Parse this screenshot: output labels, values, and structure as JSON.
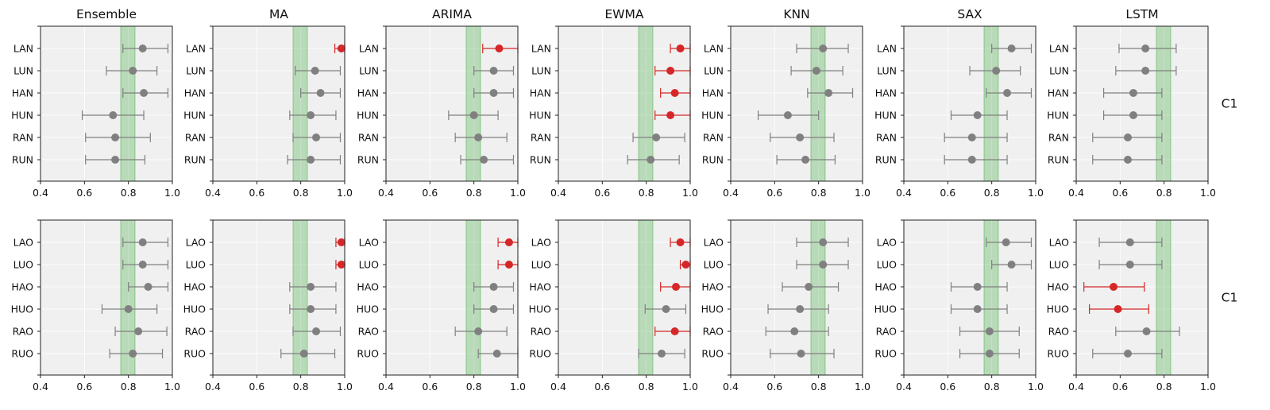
{
  "colors": {
    "normal": "#808080",
    "highlight": "#d62728",
    "band": "#2ca02c",
    "panel_bg": "#f0f0f0"
  },
  "chart_data": {
    "type": "scatter",
    "subtype": "dot-with-error-bars",
    "xlim": [
      0.4,
      1.0
    ],
    "xticks": [
      "0.4",
      "0.6",
      "0.8",
      "1.0"
    ],
    "reference_band": [
      0.765,
      0.83
    ],
    "grid": true,
    "columns": [
      "Ensemble",
      "MA",
      "ARIMA",
      "EWMA",
      "KNN",
      "SAX",
      "LSTM"
    ],
    "rows": [
      {
        "label": "C1",
        "categories": [
          "LAN",
          "LUN",
          "HAN",
          "HUN",
          "RAN",
          "RUN"
        ],
        "panels": [
          {
            "points": [
              {
                "v": 0.865,
                "lo": 0.775,
                "hi": 0.98,
                "hl": false
              },
              {
                "v": 0.82,
                "lo": 0.7,
                "hi": 0.93,
                "hl": false
              },
              {
                "v": 0.87,
                "lo": 0.775,
                "hi": 0.98,
                "hl": false
              },
              {
                "v": 0.73,
                "lo": 0.59,
                "hi": 0.87,
                "hl": false
              },
              {
                "v": 0.74,
                "lo": 0.605,
                "hi": 0.9,
                "hl": false
              },
              {
                "v": 0.74,
                "lo": 0.605,
                "hi": 0.875,
                "hl": false
              }
            ]
          },
          {
            "points": [
              {
                "v": 0.985,
                "lo": 0.955,
                "hi": 1.0,
                "hl": true
              },
              {
                "v": 0.865,
                "lo": 0.775,
                "hi": 0.98,
                "hl": false
              },
              {
                "v": 0.89,
                "lo": 0.8,
                "hi": 0.98,
                "hl": false
              },
              {
                "v": 0.845,
                "lo": 0.75,
                "hi": 0.96,
                "hl": false
              },
              {
                "v": 0.87,
                "lo": 0.765,
                "hi": 0.98,
                "hl": false
              },
              {
                "v": 0.845,
                "lo": 0.74,
                "hi": 0.98,
                "hl": false
              }
            ]
          },
          {
            "points": [
              {
                "v": 0.915,
                "lo": 0.84,
                "hi": 1.0,
                "hl": true
              },
              {
                "v": 0.89,
                "lo": 0.8,
                "hi": 0.98,
                "hl": false
              },
              {
                "v": 0.89,
                "lo": 0.8,
                "hi": 0.98,
                "hl": false
              },
              {
                "v": 0.8,
                "lo": 0.685,
                "hi": 0.91,
                "hl": false
              },
              {
                "v": 0.82,
                "lo": 0.715,
                "hi": 0.95,
                "hl": false
              },
              {
                "v": 0.845,
                "lo": 0.74,
                "hi": 0.98,
                "hl": false
              }
            ]
          },
          {
            "points": [
              {
                "v": 0.955,
                "lo": 0.91,
                "hi": 1.0,
                "hl": true
              },
              {
                "v": 0.91,
                "lo": 0.84,
                "hi": 1.0,
                "hl": true
              },
              {
                "v": 0.93,
                "lo": 0.865,
                "hi": 1.0,
                "hl": true
              },
              {
                "v": 0.91,
                "lo": 0.84,
                "hi": 1.0,
                "hl": true
              },
              {
                "v": 0.845,
                "lo": 0.74,
                "hi": 0.975,
                "hl": false
              },
              {
                "v": 0.82,
                "lo": 0.715,
                "hi": 0.95,
                "hl": false
              }
            ]
          },
          {
            "points": [
              {
                "v": 0.82,
                "lo": 0.7,
                "hi": 0.935,
                "hl": false
              },
              {
                "v": 0.79,
                "lo": 0.675,
                "hi": 0.91,
                "hl": false
              },
              {
                "v": 0.845,
                "lo": 0.75,
                "hi": 0.955,
                "hl": false
              },
              {
                "v": 0.66,
                "lo": 0.525,
                "hi": 0.8,
                "hl": false
              },
              {
                "v": 0.715,
                "lo": 0.58,
                "hi": 0.87,
                "hl": false
              },
              {
                "v": 0.74,
                "lo": 0.61,
                "hi": 0.875,
                "hl": false
              }
            ]
          },
          {
            "points": [
              {
                "v": 0.89,
                "lo": 0.8,
                "hi": 0.98,
                "hl": false
              },
              {
                "v": 0.82,
                "lo": 0.7,
                "hi": 0.93,
                "hl": false
              },
              {
                "v": 0.87,
                "lo": 0.775,
                "hi": 0.98,
                "hl": false
              },
              {
                "v": 0.735,
                "lo": 0.615,
                "hi": 0.87,
                "hl": false
              },
              {
                "v": 0.71,
                "lo": 0.585,
                "hi": 0.87,
                "hl": false
              },
              {
                "v": 0.71,
                "lo": 0.585,
                "hi": 0.87,
                "hl": false
              }
            ]
          },
          {
            "points": [
              {
                "v": 0.715,
                "lo": 0.595,
                "hi": 0.855,
                "hl": false
              },
              {
                "v": 0.715,
                "lo": 0.58,
                "hi": 0.855,
                "hl": false
              },
              {
                "v": 0.66,
                "lo": 0.525,
                "hi": 0.79,
                "hl": false
              },
              {
                "v": 0.66,
                "lo": 0.525,
                "hi": 0.79,
                "hl": false
              },
              {
                "v": 0.635,
                "lo": 0.475,
                "hi": 0.79,
                "hl": false
              },
              {
                "v": 0.635,
                "lo": 0.475,
                "hi": 0.79,
                "hl": false
              }
            ]
          }
        ]
      },
      {
        "label": "C1",
        "categories": [
          "LAO",
          "LUO",
          "HAO",
          "HUO",
          "RAO",
          "RUO"
        ],
        "panels": [
          {
            "points": [
              {
                "v": 0.865,
                "lo": 0.775,
                "hi": 0.98,
                "hl": false
              },
              {
                "v": 0.865,
                "lo": 0.775,
                "hi": 0.98,
                "hl": false
              },
              {
                "v": 0.89,
                "lo": 0.8,
                "hi": 0.98,
                "hl": false
              },
              {
                "v": 0.8,
                "lo": 0.68,
                "hi": 0.93,
                "hl": false
              },
              {
                "v": 0.845,
                "lo": 0.74,
                "hi": 0.975,
                "hl": false
              },
              {
                "v": 0.82,
                "lo": 0.715,
                "hi": 0.955,
                "hl": false
              }
            ]
          },
          {
            "points": [
              {
                "v": 0.985,
                "lo": 0.96,
                "hi": 1.0,
                "hl": true
              },
              {
                "v": 0.985,
                "lo": 0.96,
                "hi": 1.0,
                "hl": true
              },
              {
                "v": 0.845,
                "lo": 0.75,
                "hi": 0.96,
                "hl": false
              },
              {
                "v": 0.845,
                "lo": 0.75,
                "hi": 0.96,
                "hl": false
              },
              {
                "v": 0.87,
                "lo": 0.765,
                "hi": 0.98,
                "hl": false
              },
              {
                "v": 0.815,
                "lo": 0.71,
                "hi": 0.955,
                "hl": false
              }
            ]
          },
          {
            "points": [
              {
                "v": 0.96,
                "lo": 0.91,
                "hi": 1.0,
                "hl": true
              },
              {
                "v": 0.96,
                "lo": 0.91,
                "hi": 1.0,
                "hl": true
              },
              {
                "v": 0.89,
                "lo": 0.8,
                "hi": 0.98,
                "hl": false
              },
              {
                "v": 0.89,
                "lo": 0.8,
                "hi": 0.98,
                "hl": false
              },
              {
                "v": 0.82,
                "lo": 0.715,
                "hi": 0.95,
                "hl": false
              },
              {
                "v": 0.905,
                "lo": 0.82,
                "hi": 1.0,
                "hl": false
              }
            ]
          },
          {
            "points": [
              {
                "v": 0.955,
                "lo": 0.91,
                "hi": 1.0,
                "hl": true
              },
              {
                "v": 0.98,
                "lo": 0.955,
                "hi": 1.0,
                "hl": true
              },
              {
                "v": 0.935,
                "lo": 0.865,
                "hi": 1.0,
                "hl": true
              },
              {
                "v": 0.89,
                "lo": 0.795,
                "hi": 0.98,
                "hl": false
              },
              {
                "v": 0.93,
                "lo": 0.84,
                "hi": 1.0,
                "hl": true
              },
              {
                "v": 0.87,
                "lo": 0.765,
                "hi": 0.975,
                "hl": false
              }
            ]
          },
          {
            "points": [
              {
                "v": 0.82,
                "lo": 0.7,
                "hi": 0.935,
                "hl": false
              },
              {
                "v": 0.82,
                "lo": 0.7,
                "hi": 0.935,
                "hl": false
              },
              {
                "v": 0.755,
                "lo": 0.635,
                "hi": 0.89,
                "hl": false
              },
              {
                "v": 0.715,
                "lo": 0.57,
                "hi": 0.845,
                "hl": false
              },
              {
                "v": 0.69,
                "lo": 0.56,
                "hi": 0.845,
                "hl": false
              },
              {
                "v": 0.72,
                "lo": 0.58,
                "hi": 0.87,
                "hl": false
              }
            ]
          },
          {
            "points": [
              {
                "v": 0.865,
                "lo": 0.775,
                "hi": 0.98,
                "hl": false
              },
              {
                "v": 0.89,
                "lo": 0.8,
                "hi": 0.98,
                "hl": false
              },
              {
                "v": 0.735,
                "lo": 0.615,
                "hi": 0.87,
                "hl": false
              },
              {
                "v": 0.735,
                "lo": 0.615,
                "hi": 0.87,
                "hl": false
              },
              {
                "v": 0.79,
                "lo": 0.655,
                "hi": 0.925,
                "hl": false
              },
              {
                "v": 0.79,
                "lo": 0.655,
                "hi": 0.925,
                "hl": false
              }
            ]
          },
          {
            "points": [
              {
                "v": 0.645,
                "lo": 0.505,
                "hi": 0.79,
                "hl": false
              },
              {
                "v": 0.645,
                "lo": 0.505,
                "hi": 0.79,
                "hl": false
              },
              {
                "v": 0.57,
                "lo": 0.435,
                "hi": 0.71,
                "hl": true
              },
              {
                "v": 0.59,
                "lo": 0.46,
                "hi": 0.73,
                "hl": true
              },
              {
                "v": 0.72,
                "lo": 0.58,
                "hi": 0.87,
                "hl": false
              },
              {
                "v": 0.635,
                "lo": 0.475,
                "hi": 0.79,
                "hl": false
              }
            ]
          }
        ]
      }
    ]
  }
}
